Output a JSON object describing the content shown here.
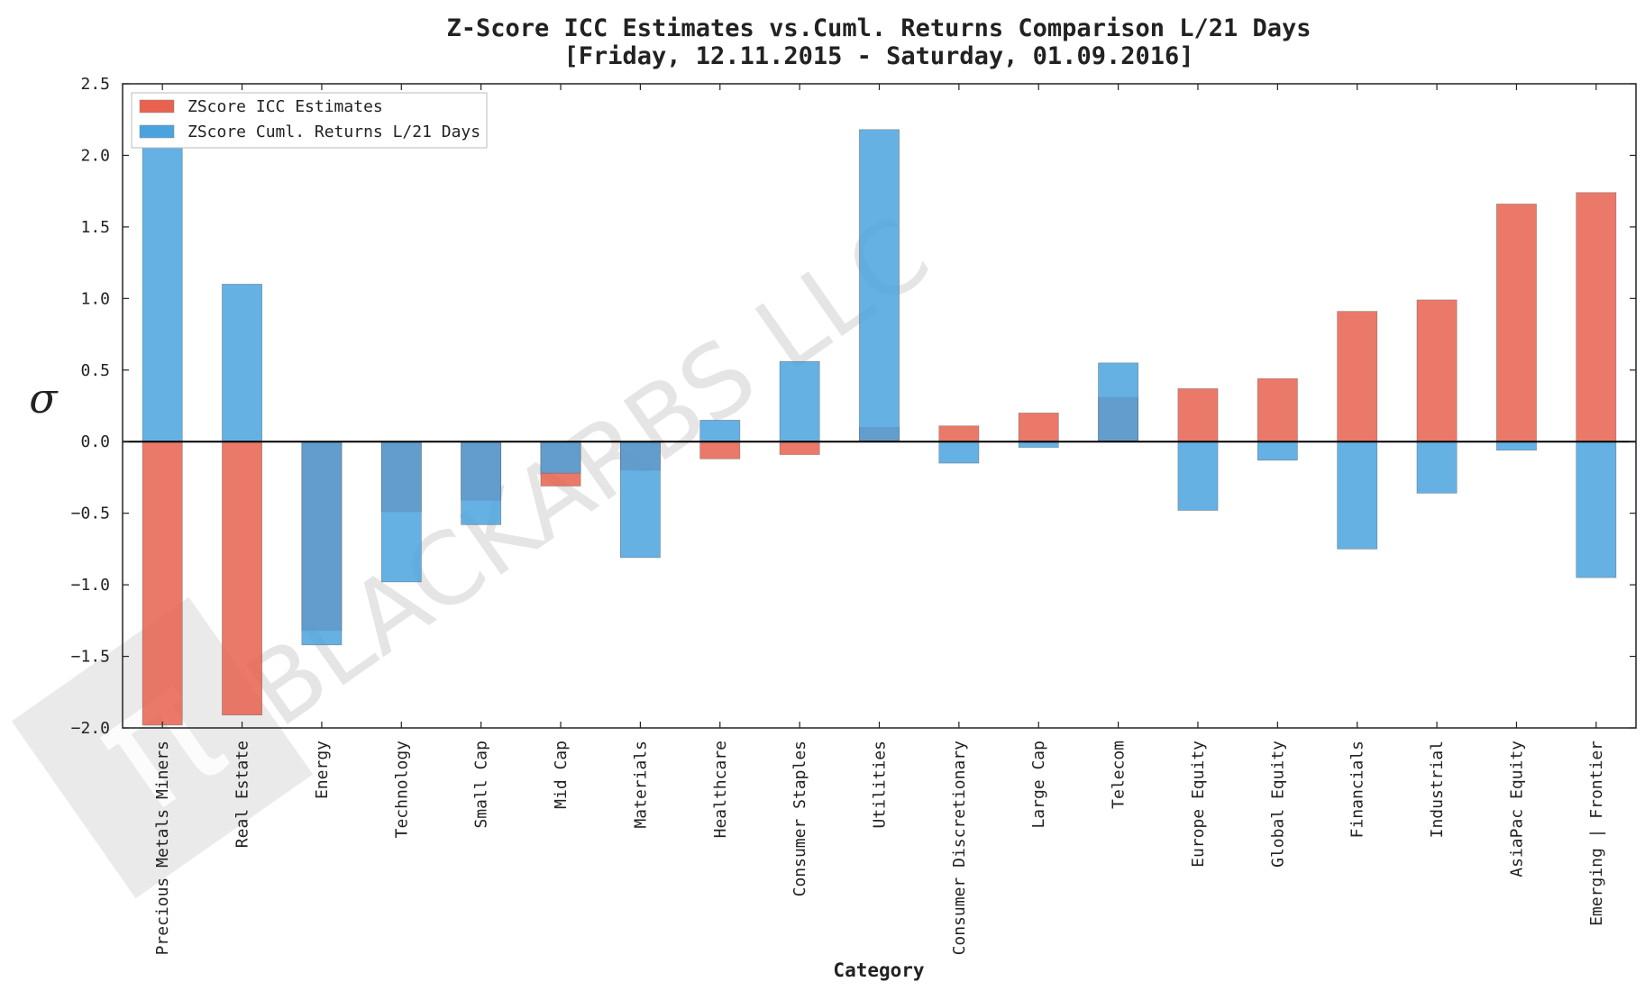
{
  "chart_data": {
    "type": "bar",
    "title_line1": "Z-Score ICC Estimates vs.Cuml. Returns Comparison L/21 Days",
    "title_line2": "[Friday, 12.11.2015 - Saturday, 01.09.2016]",
    "xlabel": "Category",
    "ylabel": "σ",
    "ylim": [
      -2.0,
      2.5
    ],
    "yticks": [
      2.5,
      2.0,
      1.5,
      1.0,
      0.5,
      0.0,
      -0.5,
      -1.0,
      -1.5,
      -2.0
    ],
    "ytick_labels": [
      "2.5",
      "2.0",
      "1.5",
      "1.0",
      "0.5",
      "0.0",
      "−0.5",
      "−1.0",
      "−1.5",
      "−2.0"
    ],
    "categories": [
      "Precious Metals Miners",
      "Real Estate",
      "Energy",
      "Technology",
      "Small Cap",
      "Mid Cap",
      "Materials",
      "Healthcare",
      "Consumer Staples",
      "Utilities",
      "Consumer Discretionary",
      "Large Cap",
      "Telecom",
      "Europe Equity",
      "Global Equity",
      "Financials",
      "Industrial",
      "AsiaPac Equity",
      "Emerging | Frontier"
    ],
    "series": [
      {
        "name": "ZScore ICC Estimates",
        "color": "#e8624f",
        "values": [
          -1.98,
          -1.91,
          -1.32,
          -0.49,
          -0.41,
          -0.31,
          -0.2,
          -0.12,
          -0.09,
          0.1,
          0.11,
          0.2,
          0.31,
          0.37,
          0.44,
          0.91,
          0.99,
          1.66,
          1.74
        ]
      },
      {
        "name": "ZScore Cuml. Returns L/21 Days",
        "color": "#4aa3df",
        "values": [
          2.1,
          1.1,
          -1.42,
          -0.98,
          -0.58,
          -0.22,
          -0.81,
          0.15,
          0.56,
          2.18,
          -0.15,
          -0.04,
          0.55,
          -0.48,
          -0.13,
          -0.75,
          -0.36,
          -0.06,
          -0.95
        ]
      }
    ],
    "legend_position": "top-left",
    "grid": false,
    "watermark": "BLACKARBS LLC"
  }
}
